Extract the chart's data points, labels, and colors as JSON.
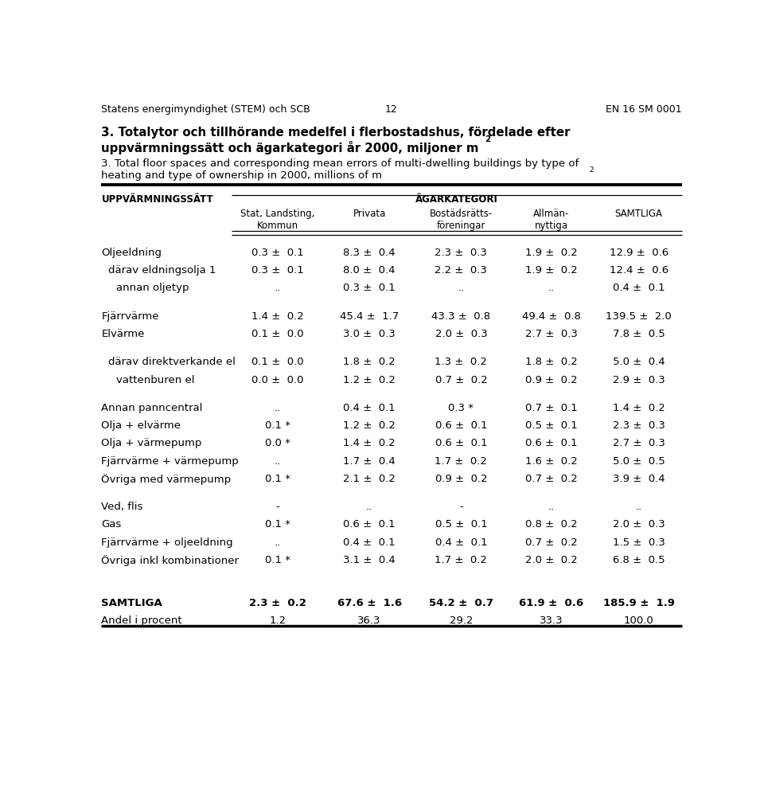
{
  "header_top": "Statens energimyndighet (STEM) och SCB",
  "header_middle": "12",
  "header_right": "EN 16 SM 0001",
  "col_header_left": "UPPVÄRMNINGSSÄTT",
  "col_header_group": "ÄGARKATEGORI",
  "col_headers": [
    "Stat, Landsting,\nKommun",
    "Privata",
    "Bostädsrätts-\nföreningar",
    "Allmän-\nnyttiga",
    "SAMTLIGA"
  ],
  "rows": [
    {
      "label": "Oljeeldning",
      "indent": 0,
      "bold": false,
      "values": [
        "0.3 ±  0.1",
        "8.3 ±  0.4",
        "2.3 ±  0.3",
        "1.9 ±  0.2",
        "12.9 ±  0.6"
      ]
    },
    {
      "label": "därav eldningsolja 1",
      "indent": 1,
      "bold": false,
      "values": [
        "0.3 ±  0.1",
        "8.0 ±  0.4",
        "2.2 ±  0.3",
        "1.9 ±  0.2",
        "12.4 ±  0.6"
      ]
    },
    {
      "label": "annan oljetyp",
      "indent": 2,
      "bold": false,
      "values": [
        "..",
        "0.3 ±  0.1",
        "..",
        "..",
        "0.4 ±  0.1"
      ]
    },
    {
      "label": "Fjärrvärme",
      "indent": 0,
      "bold": false,
      "values": [
        "1.4 ±  0.2",
        "45.4 ±  1.7",
        "43.3 ±  0.8",
        "49.4 ±  0.8",
        "139.5 ±  2.0"
      ]
    },
    {
      "label": "Elvärme",
      "indent": 0,
      "bold": false,
      "values": [
        "0.1 ±  0.0",
        "3.0 ±  0.3",
        "2.0 ±  0.3",
        "2.7 ±  0.3",
        "7.8 ±  0.5"
      ]
    },
    {
      "label": "därav direktverkande el",
      "indent": 1,
      "bold": false,
      "values": [
        "0.1 ±  0.0",
        "1.8 ±  0.2",
        "1.3 ±  0.2",
        "1.8 ±  0.2",
        "5.0 ±  0.4"
      ]
    },
    {
      "label": "vattenburen el",
      "indent": 2,
      "bold": false,
      "values": [
        "0.0 ±  0.0",
        "1.2 ±  0.2",
        "0.7 ±  0.2",
        "0.9 ±  0.2",
        "2.9 ±  0.3"
      ]
    },
    {
      "label": "Annan panncentral",
      "indent": 0,
      "bold": false,
      "values": [
        "..",
        "0.4 ±  0.1",
        "0.3 *",
        "0.7 ±  0.1",
        "1.4 ±  0.2"
      ]
    },
    {
      "label": "Olja + elvärme",
      "indent": 0,
      "bold": false,
      "values": [
        "0.1 *",
        "1.2 ±  0.2",
        "0.6 ±  0.1",
        "0.5 ±  0.1",
        "2.3 ±  0.3"
      ]
    },
    {
      "label": "Olja + värmepump",
      "indent": 0,
      "bold": false,
      "values": [
        "0.0 *",
        "1.4 ±  0.2",
        "0.6 ±  0.1",
        "0.6 ±  0.1",
        "2.7 ±  0.3"
      ]
    },
    {
      "label": "Fjärrvärme + värmepump",
      "indent": 0,
      "bold": false,
      "values": [
        "..",
        "1.7 ±  0.4",
        "1.7 ±  0.2",
        "1.6 ±  0.2",
        "5.0 ±  0.5"
      ]
    },
    {
      "label": "Övriga med värmepump",
      "indent": 0,
      "bold": false,
      "values": [
        "0.1 *",
        "2.1 ±  0.2",
        "0.9 ±  0.2",
        "0.7 ±  0.2",
        "3.9 ±  0.4"
      ]
    },
    {
      "label": "Ved, flis",
      "indent": 0,
      "bold": false,
      "values": [
        "-",
        "..",
        "-",
        "..",
        ".."
      ]
    },
    {
      "label": "Gas",
      "indent": 0,
      "bold": false,
      "values": [
        "0.1 *",
        "0.6 ±  0.1",
        "0.5 ±  0.1",
        "0.8 ±  0.2",
        "2.0 ±  0.3"
      ]
    },
    {
      "label": "Fjärrvärme + oljeeldning",
      "indent": 0,
      "bold": false,
      "values": [
        "..",
        "0.4 ±  0.1",
        "0.4 ±  0.1",
        "0.7 ±  0.2",
        "1.5 ±  0.3"
      ]
    },
    {
      "label": "Övriga inkl kombinationer",
      "indent": 0,
      "bold": false,
      "values": [
        "0.1 *",
        "3.1 ±  0.4",
        "1.7 ±  0.2",
        "2.0 ±  0.2",
        "6.8 ±  0.5"
      ]
    },
    {
      "label": "SAMTLIGA",
      "indent": 0,
      "bold": true,
      "values": [
        "2.3 ±  0.2",
        "67.6 ±  1.6",
        "54.2 ±  0.7",
        "61.9 ±  0.6",
        "185.9 ±  1.9"
      ]
    },
    {
      "label": "Andel i procent",
      "indent": 0,
      "bold": false,
      "values": [
        "1.2",
        "36.3",
        "29.2",
        "33.3",
        "100.0"
      ]
    }
  ],
  "group_spacers_after": [
    2,
    4,
    6,
    11,
    15
  ],
  "background_color": "#ffffff",
  "text_color": "#000000",
  "font_size": 9.5,
  "header_font_size": 8.5
}
